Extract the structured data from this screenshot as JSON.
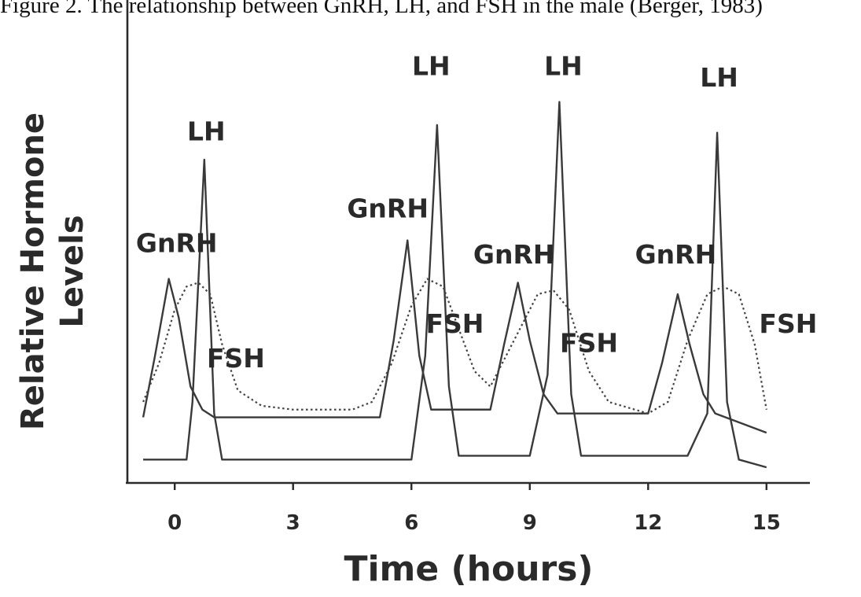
{
  "caption": "Figure 2. The relationship between GnRH, LH, and FSH in the male (Berger, 1983)",
  "chart_data": {
    "type": "line",
    "xlabel": "Time (hours)",
    "ylabel": [
      "Relative Hormone",
      "Levels"
    ],
    "xticks": [
      0,
      3,
      6,
      9,
      12,
      15
    ],
    "xlim": [
      -1.2,
      16.1
    ],
    "ylim": [
      0,
      10
    ],
    "series": [
      {
        "key": "lh",
        "style": "solid",
        "x": [
          -0.8,
          0.3,
          0.45,
          0.75,
          1.0,
          1.2,
          6.0,
          6.35,
          6.65,
          6.95,
          7.2,
          9.0,
          9.45,
          9.75,
          10.05,
          10.3,
          13.0,
          13.5,
          13.75,
          14.0,
          14.3,
          15.0
        ],
        "y": [
          0.3,
          0.3,
          1.8,
          8.1,
          1.5,
          0.3,
          0.3,
          3.0,
          9.0,
          2.2,
          0.4,
          0.4,
          2.5,
          9.6,
          2.0,
          0.4,
          0.4,
          1.5,
          8.8,
          1.8,
          0.3,
          0.1
        ]
      },
      {
        "key": "gnrh",
        "style": "solid",
        "x": [
          -0.8,
          -0.5,
          -0.15,
          0.1,
          0.4,
          0.7,
          1.0,
          5.2,
          5.55,
          5.9,
          6.2,
          6.5,
          8.0,
          8.35,
          8.7,
          9.0,
          9.35,
          9.7,
          12.0,
          12.35,
          12.75,
          13.05,
          13.4,
          13.7,
          15.0
        ],
        "y": [
          1.4,
          3.0,
          5.0,
          4.0,
          2.2,
          1.6,
          1.4,
          1.4,
          3.4,
          6.0,
          3.0,
          1.6,
          1.6,
          3.3,
          4.9,
          3.4,
          2.0,
          1.5,
          1.5,
          2.8,
          4.6,
          3.3,
          2.0,
          1.5,
          1.0
        ]
      },
      {
        "key": "fsh",
        "style": "dotted",
        "x": [
          -0.8,
          -0.4,
          0.0,
          0.3,
          0.6,
          0.9,
          1.2,
          1.6,
          2.2,
          3.0,
          4.5,
          5.0,
          5.5,
          6.0,
          6.4,
          6.8,
          7.2,
          7.6,
          8.0,
          8.6,
          9.2,
          9.6,
          10.0,
          10.5,
          11.0,
          12.0,
          12.5,
          13.0,
          13.5,
          13.9,
          14.3,
          14.7,
          15.0
        ],
        "y": [
          1.8,
          2.8,
          4.2,
          4.8,
          4.9,
          4.6,
          3.3,
          2.1,
          1.7,
          1.6,
          1.6,
          1.8,
          2.8,
          4.3,
          5.0,
          4.8,
          3.7,
          2.6,
          2.2,
          3.4,
          4.6,
          4.7,
          4.2,
          2.6,
          1.8,
          1.5,
          1.8,
          3.4,
          4.6,
          4.8,
          4.6,
          3.3,
          1.6
        ]
      }
    ],
    "annotations": [
      {
        "text": "LH",
        "x": 0.8,
        "y": 8.6
      },
      {
        "text": "GnRH",
        "x": 0.05,
        "y": 5.7
      },
      {
        "text": "FSH",
        "x": 1.55,
        "y": 2.7
      },
      {
        "text": "LH",
        "x": 6.5,
        "y": 10.3
      },
      {
        "text": "GnRH",
        "x": 5.4,
        "y": 6.6
      },
      {
        "text": "FSH",
        "x": 7.1,
        "y": 3.6
      },
      {
        "text": "LH",
        "x": 9.85,
        "y": 10.3
      },
      {
        "text": "GnRH",
        "x": 8.6,
        "y": 5.4
      },
      {
        "text": "FSH",
        "x": 10.5,
        "y": 3.1
      },
      {
        "text": "LH",
        "x": 13.8,
        "y": 10.0
      },
      {
        "text": "GnRH",
        "x": 12.7,
        "y": 5.4
      },
      {
        "text": "FSH",
        "x": 15.55,
        "y": 3.6
      }
    ]
  }
}
